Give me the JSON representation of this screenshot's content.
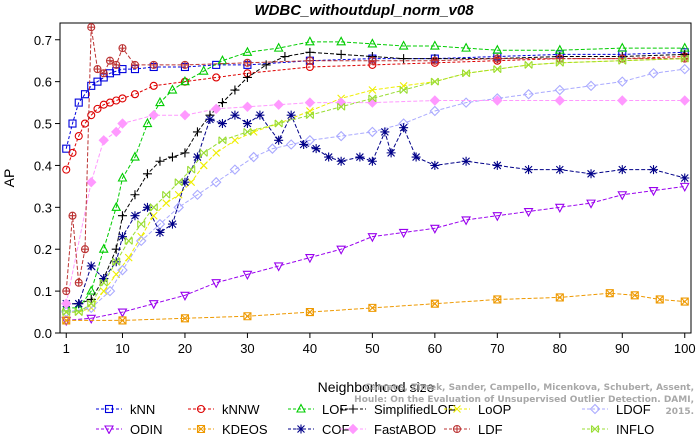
{
  "chart_data": {
    "type": "line",
    "title": "WDBC_withoutdupl_norm_v08",
    "xlabel": "Neighborhood size",
    "ylabel": "AP",
    "xlim": [
      0,
      101
    ],
    "ylim": [
      0.0,
      0.74
    ],
    "xticks": [
      1,
      10,
      20,
      30,
      40,
      50,
      60,
      70,
      80,
      90,
      100
    ],
    "yticks": [
      0.0,
      0.1,
      0.2,
      0.3,
      0.4,
      0.5,
      0.6,
      0.7
    ],
    "grid": false,
    "legend_position": "bottom",
    "series": [
      {
        "name": "kNN",
        "color": "#0000dd",
        "marker": "square",
        "dash": "3,2",
        "points": [
          [
            1,
            0.44
          ],
          [
            2,
            0.5
          ],
          [
            3,
            0.55
          ],
          [
            4,
            0.57
          ],
          [
            5,
            0.59
          ],
          [
            6,
            0.6
          ],
          [
            7,
            0.61
          ],
          [
            8,
            0.62
          ],
          [
            9,
            0.625
          ],
          [
            10,
            0.63
          ],
          [
            12,
            0.63
          ],
          [
            15,
            0.635
          ],
          [
            20,
            0.635
          ],
          [
            25,
            0.64
          ],
          [
            30,
            0.64
          ],
          [
            40,
            0.65
          ],
          [
            50,
            0.655
          ],
          [
            60,
            0.655
          ],
          [
            70,
            0.66
          ],
          [
            80,
            0.665
          ],
          [
            90,
            0.665
          ],
          [
            100,
            0.67
          ]
        ]
      },
      {
        "name": "kNNW",
        "color": "#dd0000",
        "marker": "circle",
        "dash": "3,2",
        "points": [
          [
            1,
            0.39
          ],
          [
            2,
            0.43
          ],
          [
            3,
            0.47
          ],
          [
            4,
            0.5
          ],
          [
            5,
            0.52
          ],
          [
            6,
            0.535
          ],
          [
            7,
            0.545
          ],
          [
            8,
            0.55
          ],
          [
            9,
            0.555
          ],
          [
            10,
            0.56
          ],
          [
            12,
            0.57
          ],
          [
            15,
            0.59
          ],
          [
            20,
            0.6
          ],
          [
            25,
            0.61
          ],
          [
            30,
            0.62
          ],
          [
            40,
            0.635
          ],
          [
            50,
            0.64
          ],
          [
            60,
            0.645
          ],
          [
            70,
            0.65
          ],
          [
            80,
            0.655
          ],
          [
            90,
            0.655
          ],
          [
            100,
            0.66
          ]
        ]
      },
      {
        "name": "LOF",
        "color": "#00cc00",
        "marker": "triangle",
        "dash": "4,2",
        "points": [
          [
            1,
            0.06
          ],
          [
            3,
            0.06
          ],
          [
            5,
            0.1
          ],
          [
            7,
            0.2
          ],
          [
            9,
            0.3
          ],
          [
            10,
            0.37
          ],
          [
            12,
            0.42
          ],
          [
            14,
            0.5
          ],
          [
            16,
            0.55
          ],
          [
            18,
            0.58
          ],
          [
            20,
            0.6
          ],
          [
            23,
            0.625
          ],
          [
            26,
            0.65
          ],
          [
            30,
            0.67
          ],
          [
            35,
            0.68
          ],
          [
            40,
            0.695
          ],
          [
            45,
            0.695
          ],
          [
            50,
            0.69
          ],
          [
            55,
            0.685
          ],
          [
            60,
            0.685
          ],
          [
            65,
            0.68
          ],
          [
            70,
            0.675
          ],
          [
            80,
            0.675
          ],
          [
            90,
            0.68
          ],
          [
            100,
            0.68
          ]
        ]
      },
      {
        "name": "SimplifiedLOF",
        "color": "#000000",
        "marker": "plus",
        "dash": "4,2",
        "points": [
          [
            1,
            0.07
          ],
          [
            3,
            0.07
          ],
          [
            5,
            0.08
          ],
          [
            7,
            0.13
          ],
          [
            9,
            0.2
          ],
          [
            10,
            0.28
          ],
          [
            12,
            0.33
          ],
          [
            14,
            0.38
          ],
          [
            16,
            0.41
          ],
          [
            18,
            0.42
          ],
          [
            20,
            0.43
          ],
          [
            22,
            0.48
          ],
          [
            24,
            0.52
          ],
          [
            26,
            0.55
          ],
          [
            28,
            0.58
          ],
          [
            30,
            0.61
          ],
          [
            33,
            0.64
          ],
          [
            36,
            0.66
          ],
          [
            40,
            0.67
          ],
          [
            45,
            0.665
          ],
          [
            50,
            0.66
          ],
          [
            55,
            0.655
          ],
          [
            60,
            0.655
          ],
          [
            70,
            0.655
          ],
          [
            80,
            0.66
          ],
          [
            90,
            0.66
          ],
          [
            100,
            0.665
          ]
        ]
      },
      {
        "name": "LoOP",
        "color": "#eeee00",
        "marker": "x",
        "dash": "4,2",
        "points": [
          [
            1,
            0.05
          ],
          [
            3,
            0.05
          ],
          [
            5,
            0.06
          ],
          [
            7,
            0.1
          ],
          [
            9,
            0.14
          ],
          [
            11,
            0.18
          ],
          [
            13,
            0.23
          ],
          [
            15,
            0.28
          ],
          [
            17,
            0.31
          ],
          [
            19,
            0.33
          ],
          [
            21,
            0.36
          ],
          [
            23,
            0.4
          ],
          [
            25,
            0.43
          ],
          [
            28,
            0.46
          ],
          [
            31,
            0.48
          ],
          [
            35,
            0.5
          ],
          [
            40,
            0.53
          ],
          [
            45,
            0.56
          ],
          [
            50,
            0.58
          ],
          [
            55,
            0.59
          ],
          [
            60,
            0.6
          ],
          [
            65,
            0.62
          ],
          [
            70,
            0.63
          ],
          [
            75,
            0.64
          ],
          [
            80,
            0.645
          ],
          [
            90,
            0.65
          ],
          [
            100,
            0.655
          ]
        ]
      },
      {
        "name": "LDOF",
        "color": "#aaaaff",
        "marker": "diamond",
        "dash": "4,2",
        "points": [
          [
            1,
            0.05
          ],
          [
            5,
            0.06
          ],
          [
            8,
            0.1
          ],
          [
            10,
            0.15
          ],
          [
            13,
            0.22
          ],
          [
            16,
            0.26
          ],
          [
            19,
            0.3
          ],
          [
            22,
            0.33
          ],
          [
            25,
            0.36
          ],
          [
            28,
            0.39
          ],
          [
            31,
            0.42
          ],
          [
            34,
            0.44
          ],
          [
            37,
            0.45
          ],
          [
            40,
            0.46
          ],
          [
            45,
            0.47
          ],
          [
            50,
            0.48
          ],
          [
            55,
            0.5
          ],
          [
            60,
            0.53
          ],
          [
            65,
            0.55
          ],
          [
            70,
            0.56
          ],
          [
            75,
            0.57
          ],
          [
            80,
            0.58
          ],
          [
            85,
            0.59
          ],
          [
            90,
            0.6
          ],
          [
            95,
            0.62
          ],
          [
            100,
            0.63
          ]
        ]
      },
      {
        "name": "ODIN",
        "color": "#9900ee",
        "marker": "triangle-down",
        "dash": "4,2",
        "points": [
          [
            1,
            0.03
          ],
          [
            5,
            0.035
          ],
          [
            10,
            0.05
          ],
          [
            15,
            0.07
          ],
          [
            20,
            0.09
          ],
          [
            25,
            0.12
          ],
          [
            30,
            0.14
          ],
          [
            35,
            0.16
          ],
          [
            40,
            0.18
          ],
          [
            45,
            0.2
          ],
          [
            50,
            0.23
          ],
          [
            55,
            0.24
          ],
          [
            60,
            0.25
          ],
          [
            65,
            0.27
          ],
          [
            70,
            0.28
          ],
          [
            75,
            0.29
          ],
          [
            80,
            0.3
          ],
          [
            85,
            0.31
          ],
          [
            90,
            0.33
          ],
          [
            95,
            0.34
          ],
          [
            100,
            0.35
          ]
        ]
      },
      {
        "name": "KDEOS",
        "color": "#ee9900",
        "marker": "square-x",
        "dash": "4,2",
        "points": [
          [
            1,
            0.03
          ],
          [
            10,
            0.03
          ],
          [
            20,
            0.035
          ],
          [
            30,
            0.04
          ],
          [
            40,
            0.05
          ],
          [
            50,
            0.06
          ],
          [
            60,
            0.07
          ],
          [
            70,
            0.08
          ],
          [
            80,
            0.085
          ],
          [
            88,
            0.095
          ],
          [
            92,
            0.09
          ],
          [
            96,
            0.08
          ],
          [
            100,
            0.075
          ]
        ]
      },
      {
        "name": "COF",
        "color": "#000088",
        "marker": "asterisk",
        "dash": "4,2",
        "points": [
          [
            1,
            0.07
          ],
          [
            3,
            0.07
          ],
          [
            5,
            0.16
          ],
          [
            7,
            0.13
          ],
          [
            9,
            0.17
          ],
          [
            10,
            0.23
          ],
          [
            12,
            0.28
          ],
          [
            14,
            0.3
          ],
          [
            16,
            0.24
          ],
          [
            18,
            0.26
          ],
          [
            20,
            0.36
          ],
          [
            22,
            0.42
          ],
          [
            24,
            0.51
          ],
          [
            26,
            0.5
          ],
          [
            28,
            0.52
          ],
          [
            30,
            0.5
          ],
          [
            32,
            0.52
          ],
          [
            35,
            0.46
          ],
          [
            37,
            0.52
          ],
          [
            39,
            0.45
          ],
          [
            41,
            0.44
          ],
          [
            43,
            0.42
          ],
          [
            45,
            0.41
          ],
          [
            48,
            0.42
          ],
          [
            50,
            0.41
          ],
          [
            52,
            0.48
          ],
          [
            53,
            0.43
          ],
          [
            55,
            0.49
          ],
          [
            57,
            0.42
          ],
          [
            60,
            0.4
          ],
          [
            65,
            0.41
          ],
          [
            70,
            0.4
          ],
          [
            75,
            0.39
          ],
          [
            80,
            0.39
          ],
          [
            85,
            0.38
          ],
          [
            90,
            0.39
          ],
          [
            95,
            0.39
          ],
          [
            100,
            0.37
          ]
        ]
      },
      {
        "name": "FastABOD",
        "color": "#ff99ff",
        "marker": "diamond-filled",
        "dash": "4,2",
        "points": [
          [
            1,
            0.07
          ],
          [
            5,
            0.36
          ],
          [
            7,
            0.46
          ],
          [
            9,
            0.48
          ],
          [
            10,
            0.5
          ],
          [
            15,
            0.52
          ],
          [
            20,
            0.52
          ],
          [
            25,
            0.535
          ],
          [
            30,
            0.54
          ],
          [
            35,
            0.545
          ],
          [
            40,
            0.55
          ],
          [
            45,
            0.55
          ],
          [
            50,
            0.55
          ],
          [
            60,
            0.555
          ],
          [
            70,
            0.555
          ],
          [
            80,
            0.555
          ],
          [
            90,
            0.555
          ],
          [
            100,
            0.555
          ]
        ]
      },
      {
        "name": "LDF",
        "color": "#bb3333",
        "marker": "circle-plus",
        "dash": "4,2",
        "points": [
          [
            1,
            0.1
          ],
          [
            2,
            0.28
          ],
          [
            3,
            0.12
          ],
          [
            4,
            0.2
          ],
          [
            5,
            0.73
          ],
          [
            6,
            0.63
          ],
          [
            7,
            0.62
          ],
          [
            8,
            0.65
          ],
          [
            9,
            0.64
          ],
          [
            10,
            0.68
          ],
          [
            12,
            0.64
          ],
          [
            15,
            0.64
          ],
          [
            20,
            0.64
          ],
          [
            30,
            0.645
          ],
          [
            40,
            0.65
          ],
          [
            50,
            0.65
          ],
          [
            60,
            0.65
          ],
          [
            70,
            0.655
          ],
          [
            80,
            0.655
          ],
          [
            90,
            0.655
          ],
          [
            100,
            0.655
          ]
        ]
      },
      {
        "name": "INFLO",
        "color": "#99dd33",
        "marker": "x-square",
        "dash": "4,2",
        "points": [
          [
            1,
            0.05
          ],
          [
            3,
            0.05
          ],
          [
            5,
            0.07
          ],
          [
            7,
            0.12
          ],
          [
            9,
            0.17
          ],
          [
            11,
            0.22
          ],
          [
            13,
            0.26
          ],
          [
            15,
            0.3
          ],
          [
            17,
            0.33
          ],
          [
            19,
            0.36
          ],
          [
            21,
            0.39
          ],
          [
            23,
            0.43
          ],
          [
            26,
            0.46
          ],
          [
            30,
            0.48
          ],
          [
            35,
            0.5
          ],
          [
            40,
            0.52
          ],
          [
            45,
            0.54
          ],
          [
            50,
            0.56
          ],
          [
            55,
            0.58
          ],
          [
            60,
            0.6
          ],
          [
            65,
            0.62
          ],
          [
            70,
            0.63
          ],
          [
            75,
            0.64
          ],
          [
            80,
            0.645
          ],
          [
            90,
            0.65
          ],
          [
            100,
            0.655
          ]
        ]
      }
    ],
    "legend_rows": [
      [
        "kNN",
        "kNNW",
        "LOF",
        "SimplifiedLOF",
        "LoOP",
        "LDOF"
      ],
      [
        "ODIN",
        "KDEOS",
        "COF",
        "FastABOD",
        "LDF",
        "INFLO"
      ]
    ],
    "annotation": "Campos, Zimek, Sander, Campello, Micenkova, Schubert, Assent, Houle: On the Evaluation of Unsupervised Outlier Detection. DAMI, 2015."
  }
}
